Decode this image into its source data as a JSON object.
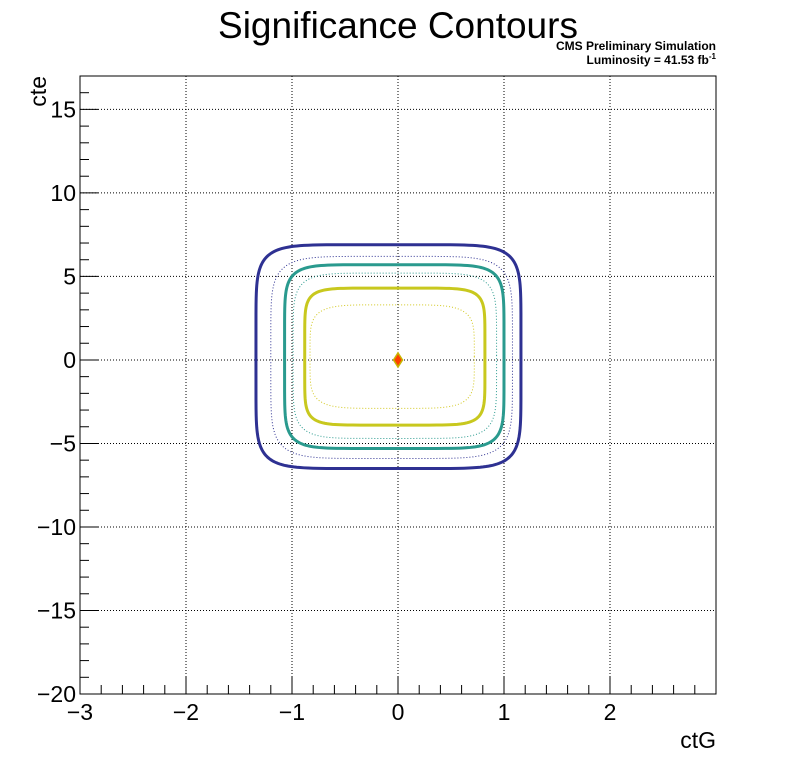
{
  "chart_data": {
    "type": "contour",
    "title": "Significance Contours",
    "annotation_line1": "CMS Preliminary Simulation",
    "annotation_line2_prefix": "Luminosity = 41.53 fb",
    "annotation_line2_exponent": "-1",
    "xlabel": "ctG",
    "ylabel": "cte",
    "xlim": [
      -3,
      3
    ],
    "ylim": [
      -20,
      17
    ],
    "x_ticks": [
      -3,
      -2,
      -1,
      0,
      1,
      2
    ],
    "x_tick_labels": [
      "−3",
      "−2",
      "−1",
      "0",
      "1",
      "2"
    ],
    "y_ticks": [
      -20,
      -15,
      -10,
      -5,
      0,
      5,
      10,
      15
    ],
    "y_tick_labels": [
      "−20",
      "−15",
      "−10",
      "−5",
      "0",
      "5",
      "10",
      "15"
    ],
    "grid": true,
    "best_fit": {
      "x": 0.0,
      "y": 0.0,
      "color": "#ff4000",
      "edge_color": "#c8b400"
    },
    "contours": [
      {
        "style": "solid",
        "color": "#c8c81e",
        "x_range": [
          -0.88,
          0.82
        ],
        "y_range": [
          -3.9,
          4.3
        ],
        "n": 7
      },
      {
        "style": "dotted",
        "color": "#d2c81e",
        "x_range": [
          -0.83,
          0.72
        ],
        "y_range": [
          -2.9,
          3.3
        ],
        "n": 5
      },
      {
        "style": "solid",
        "color": "#2a9a8e",
        "x_range": [
          -1.07,
          1.0
        ],
        "y_range": [
          -5.3,
          5.7
        ],
        "n": 7
      },
      {
        "style": "dotted",
        "color": "#2a9a8e",
        "x_range": [
          -0.99,
          0.93
        ],
        "y_range": [
          -4.7,
          5.2
        ],
        "n": 6
      },
      {
        "style": "solid",
        "color": "#2e3192",
        "x_range": [
          -1.34,
          1.16
        ],
        "y_range": [
          -6.5,
          6.9
        ],
        "n": 7
      },
      {
        "style": "dotted",
        "color": "#2e3192",
        "x_range": [
          -1.2,
          1.08
        ],
        "y_range": [
          -5.9,
          6.2
        ],
        "n": 6
      }
    ]
  }
}
